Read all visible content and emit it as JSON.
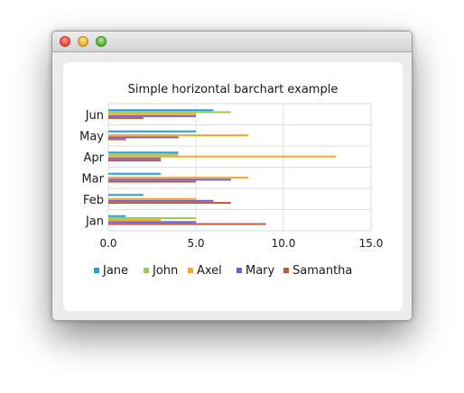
{
  "window": {
    "title": ""
  },
  "chart_data": {
    "type": "bar",
    "orientation": "horizontal",
    "title": "Simple horizontal barchart example",
    "categories": [
      "Jan",
      "Feb",
      "Mar",
      "Apr",
      "May",
      "Jun"
    ],
    "xlim": [
      0,
      15
    ],
    "x_ticks": [
      "0.0",
      "5.0",
      "10.0",
      "15.0"
    ],
    "grid": true,
    "legend_position": "bottom",
    "series": [
      {
        "name": "Jane",
        "color": "#209fdf",
        "values": [
          1,
          2,
          3,
          4,
          5,
          6
        ]
      },
      {
        "name": "John",
        "color": "#99ca53",
        "values": [
          5,
          0,
          0,
          4,
          0,
          7
        ]
      },
      {
        "name": "Axel",
        "color": "#f6a625",
        "values": [
          3,
          5,
          8,
          13,
          8,
          5
        ]
      },
      {
        "name": "Mary",
        "color": "#6d5fd5",
        "values": [
          5,
          6,
          7,
          3,
          4,
          5
        ]
      },
      {
        "name": "Samantha",
        "color": "#bf593e",
        "values": [
          9,
          7,
          5,
          3,
          1,
          2
        ]
      }
    ]
  }
}
